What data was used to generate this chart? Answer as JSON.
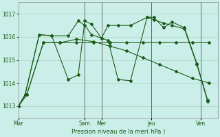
{
  "xlabel": "Pression niveau de la mer( hPa )",
  "bg_color": "#cceee8",
  "grid_color": "#b0d8cc",
  "line_color": "#1a5c1a",
  "ylim": [
    1012.5,
    1017.5
  ],
  "yticks": [
    1013,
    1014,
    1015,
    1016,
    1017
  ],
  "xlim": [
    0,
    240
  ],
  "day_labels": [
    "Mar",
    "Sam",
    "Mer",
    "Jeu",
    "Ven"
  ],
  "day_positions": [
    0,
    80,
    100,
    160,
    220
  ],
  "vline_positions": [
    80,
    100,
    160,
    220
  ],
  "series": [
    {
      "x": [
        0,
        10,
        30,
        50,
        70,
        90,
        110,
        130,
        150,
        170,
        190,
        210,
        230
      ],
      "y": [
        1013.0,
        1013.5,
        1015.75,
        1015.75,
        1015.75,
        1015.75,
        1015.75,
        1015.75,
        1015.75,
        1015.75,
        1015.75,
        1015.75,
        1015.75
      ]
    },
    {
      "x": [
        0,
        10,
        30,
        50,
        70,
        90,
        110,
        130,
        150,
        170,
        190,
        210,
        230
      ],
      "y": [
        1013.0,
        1013.5,
        1015.75,
        1015.75,
        1015.9,
        1015.8,
        1015.6,
        1015.4,
        1015.1,
        1014.8,
        1014.5,
        1014.2,
        1014.0
      ]
    },
    {
      "x": [
        0,
        8,
        25,
        40,
        60,
        72,
        80,
        88,
        100,
        108,
        120,
        135,
        155,
        163,
        175,
        185,
        200,
        215,
        228
      ],
      "y": [
        1013.0,
        1013.5,
        1016.1,
        1016.05,
        1016.05,
        1016.7,
        1016.5,
        1016.1,
        1015.95,
        1016.5,
        1016.5,
        1016.5,
        1016.85,
        1016.75,
        1016.6,
        1016.5,
        1016.35,
        1014.8,
        1013.2
      ]
    },
    {
      "x": [
        0,
        8,
        25,
        40,
        60,
        72,
        80,
        88,
        100,
        108,
        120,
        135,
        155,
        163,
        175,
        185,
        200,
        215,
        228
      ],
      "y": [
        1013.0,
        1013.5,
        1016.1,
        1016.05,
        1014.15,
        1014.35,
        1016.7,
        1016.55,
        1015.95,
        1015.85,
        1014.15,
        1014.1,
        1016.85,
        1016.85,
        1016.4,
        1016.65,
        1016.4,
        1014.85,
        1013.25
      ]
    }
  ]
}
